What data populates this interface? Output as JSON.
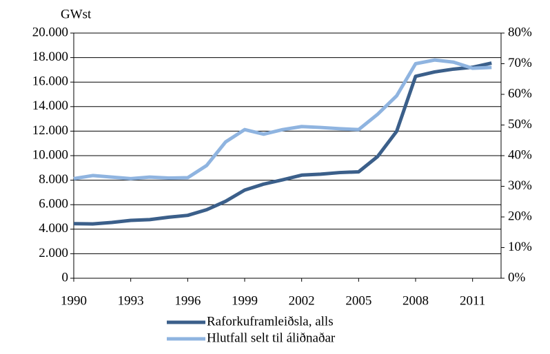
{
  "chart_data": {
    "type": "line",
    "ylabel": "GWst",
    "x": [
      1990,
      1991,
      1992,
      1993,
      1994,
      1995,
      1996,
      1997,
      1998,
      1999,
      2000,
      2001,
      2002,
      2003,
      2004,
      2005,
      2006,
      2007,
      2008,
      2009,
      2010,
      2011,
      2012
    ],
    "xlim": [
      1990,
      2012.5
    ],
    "xticks": [
      1990,
      1993,
      1996,
      1999,
      2002,
      2005,
      2008,
      2011
    ],
    "ylim": [
      0,
      20000
    ],
    "yticks": [
      {
        "value": 0,
        "label": "0"
      },
      {
        "value": 2000,
        "label": "2.000"
      },
      {
        "value": 4000,
        "label": "4.000"
      },
      {
        "value": 6000,
        "label": "6.000"
      },
      {
        "value": 8000,
        "label": "8.000"
      },
      {
        "value": 10000,
        "label": "10.000"
      },
      {
        "value": 12000,
        "label": "12.000"
      },
      {
        "value": 14000,
        "label": "14.000"
      },
      {
        "value": 16000,
        "label": "16.000"
      },
      {
        "value": 18000,
        "label": "18.000"
      },
      {
        "value": 20000,
        "label": "20.000"
      }
    ],
    "y2lim": [
      0,
      80
    ],
    "y2ticks": [
      {
        "value": 0,
        "label": "0%"
      },
      {
        "value": 10,
        "label": "10%"
      },
      {
        "value": 20,
        "label": "20%"
      },
      {
        "value": 30,
        "label": "30%"
      },
      {
        "value": 40,
        "label": "40%"
      },
      {
        "value": 50,
        "label": "50%"
      },
      {
        "value": 60,
        "label": "60%"
      },
      {
        "value": 70,
        "label": "70%"
      },
      {
        "value": 80,
        "label": "80%"
      }
    ],
    "grid": true,
    "legend": "bottom",
    "series": [
      {
        "name": "Raforkuframleiðsla, alls",
        "color": "#3b5f8a",
        "values": [
          4450,
          4430,
          4550,
          4720,
          4780,
          4980,
          5130,
          5590,
          6280,
          7190,
          7680,
          8030,
          8410,
          8490,
          8620,
          8680,
          9930,
          11980,
          16470,
          16830,
          17060,
          17210,
          17550
        ]
      },
      {
        "name": "Hlutfall selt til áliðnaðar",
        "color": "#8fb4e0",
        "axis": "y2",
        "values": [
          32.5,
          33.5,
          33,
          32.5,
          33,
          32.7,
          32.8,
          36.8,
          44.5,
          48.5,
          47,
          48.5,
          49.5,
          49.2,
          48.8,
          48.5,
          53.5,
          59.5,
          70,
          71.2,
          70.5,
          68.5,
          68.8
        ]
      }
    ]
  }
}
